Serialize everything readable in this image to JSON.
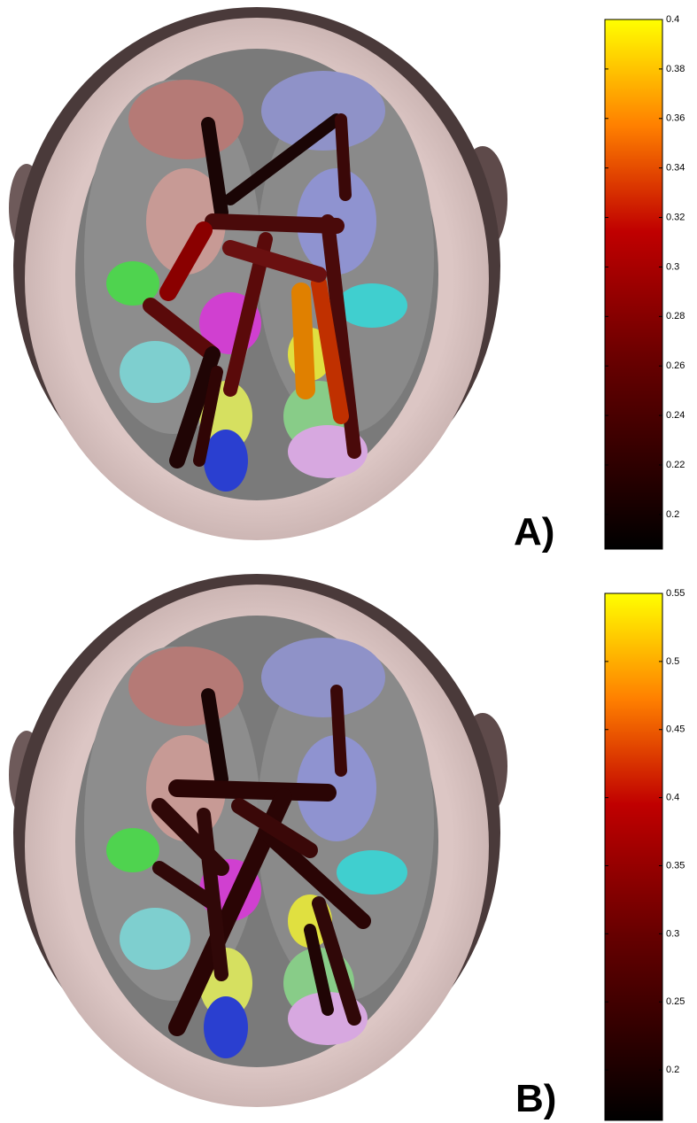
{
  "panels": [
    {
      "label": "A)",
      "colorbar": {
        "lim": [
          0.186,
          0.4
        ],
        "ticks": [
          0.2,
          0.22,
          0.24,
          0.26,
          0.28,
          0.3,
          0.32,
          0.34,
          0.36,
          0.38,
          0.4
        ]
      }
    },
    {
      "label": "B)",
      "colorbar": {
        "lim": [
          0.163,
          0.55
        ],
        "ticks": [
          0.2,
          0.25,
          0.3,
          0.35,
          0.4,
          0.45,
          0.5,
          0.55
        ]
      }
    }
  ]
}
